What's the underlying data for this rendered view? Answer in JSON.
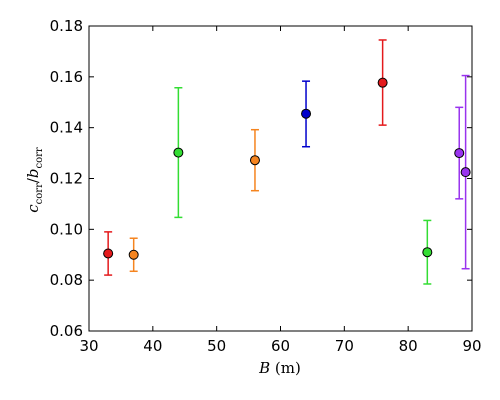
{
  "chart_data": {
    "type": "scatter",
    "title": "",
    "xlabel": "B (m)",
    "ylabel": "c_corr/b_corr",
    "xlim": [
      30,
      90
    ],
    "ylim": [
      0.06,
      0.18
    ],
    "xticks": [
      30,
      40,
      50,
      60,
      70,
      80,
      90
    ],
    "yticks": [
      0.06,
      0.08,
      0.1,
      0.12,
      0.14,
      0.16,
      0.18
    ],
    "xtick_labels": [
      "30",
      "40",
      "50",
      "60",
      "70",
      "80",
      "90"
    ],
    "ytick_labels": [
      "0.06",
      "0.08",
      "0.10",
      "0.12",
      "0.14",
      "0.16",
      "0.18"
    ],
    "grid": false,
    "legend": "none",
    "points": [
      {
        "x": 33,
        "y": 0.0905,
        "err_low": 0.0085,
        "err_high": 0.0085,
        "color": "#e41a1c"
      },
      {
        "x": 37,
        "y": 0.09,
        "err_low": 0.0065,
        "err_high": 0.0065,
        "color": "#f5841f"
      },
      {
        "x": 44,
        "y": 0.1302,
        "err_low": 0.0255,
        "err_high": 0.0255,
        "color": "#33dd33"
      },
      {
        "x": 56,
        "y": 0.1272,
        "err_low": 0.012,
        "err_high": 0.012,
        "color": "#f5841f"
      },
      {
        "x": 64,
        "y": 0.1455,
        "err_low": 0.013,
        "err_high": 0.0128,
        "color": "#0000cc"
      },
      {
        "x": 76,
        "y": 0.1577,
        "err_low": 0.0167,
        "err_high": 0.0168,
        "color": "#e41a1c"
      },
      {
        "x": 83,
        "y": 0.091,
        "err_low": 0.0125,
        "err_high": 0.0125,
        "color": "#33dd33"
      },
      {
        "x": 88,
        "y": 0.13,
        "err_low": 0.018,
        "err_high": 0.018,
        "color": "#9933ee"
      },
      {
        "x": 89,
        "y": 0.1225,
        "err_low": 0.038,
        "err_high": 0.038,
        "color": "#9933ee"
      }
    ]
  }
}
